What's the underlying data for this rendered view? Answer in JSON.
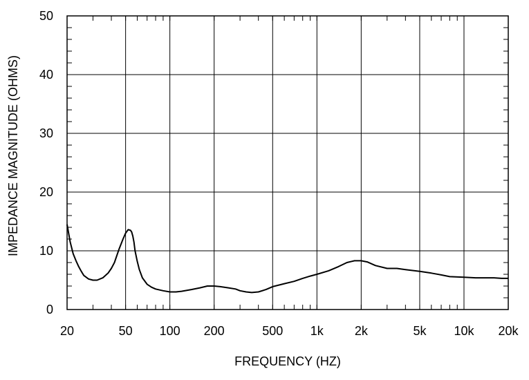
{
  "chart_data": {
    "type": "line",
    "xlabel": "FREQUENCY  (HZ)",
    "ylabel": "IMPEDANCE MAGNITUDE  (OHMS)",
    "x_scale": "log",
    "xlim": [
      20,
      20000
    ],
    "ylim": [
      0,
      50
    ],
    "grid": true,
    "x_ticks": [
      20,
      50,
      100,
      200,
      500,
      1000,
      2000,
      5000,
      10000,
      20000
    ],
    "x_tick_labels": [
      "20",
      "50",
      "100",
      "200",
      "500",
      "1k",
      "2k",
      "5k",
      "10k",
      "20k"
    ],
    "y_ticks": [
      0,
      10,
      20,
      30,
      40,
      50
    ],
    "y_tick_labels": [
      "0",
      "10",
      "20",
      "30",
      "40",
      "50"
    ],
    "series": [
      {
        "x": [
          20,
          21,
          22,
          23,
          24,
          25,
          26,
          28,
          30,
          32,
          35,
          38,
          40,
          42,
          45,
          48,
          50,
          52,
          54,
          55,
          56,
          57,
          58,
          60,
          62,
          65,
          70,
          75,
          80,
          90,
          100,
          110,
          120,
          140,
          160,
          180,
          200,
          220,
          250,
          280,
          300,
          330,
          360,
          400,
          450,
          500,
          600,
          700,
          800,
          900,
          1000,
          1200,
          1400,
          1600,
          1800,
          2000,
          2200,
          2500,
          3000,
          3500,
          4000,
          5000,
          6000,
          7000,
          8000,
          10000,
          12000,
          14000,
          16000,
          18000,
          20000
        ],
        "y": [
          14.5,
          11.5,
          9.5,
          8.3,
          7.3,
          6.5,
          5.8,
          5.2,
          5.0,
          5.0,
          5.4,
          6.2,
          7.0,
          8.0,
          10.2,
          12.0,
          13.0,
          13.6,
          13.5,
          13.2,
          12.5,
          11.5,
          10.0,
          8.2,
          6.8,
          5.4,
          4.3,
          3.8,
          3.5,
          3.2,
          3.0,
          3.0,
          3.1,
          3.4,
          3.7,
          4.0,
          4.0,
          3.9,
          3.7,
          3.5,
          3.2,
          3.0,
          2.9,
          3.0,
          3.4,
          3.9,
          4.4,
          4.8,
          5.3,
          5.7,
          6.0,
          6.6,
          7.3,
          8.0,
          8.3,
          8.3,
          8.1,
          7.5,
          7.0,
          7.0,
          6.8,
          6.5,
          6.2,
          5.9,
          5.6,
          5.5,
          5.4,
          5.4,
          5.4,
          5.3,
          5.3
        ]
      }
    ]
  }
}
